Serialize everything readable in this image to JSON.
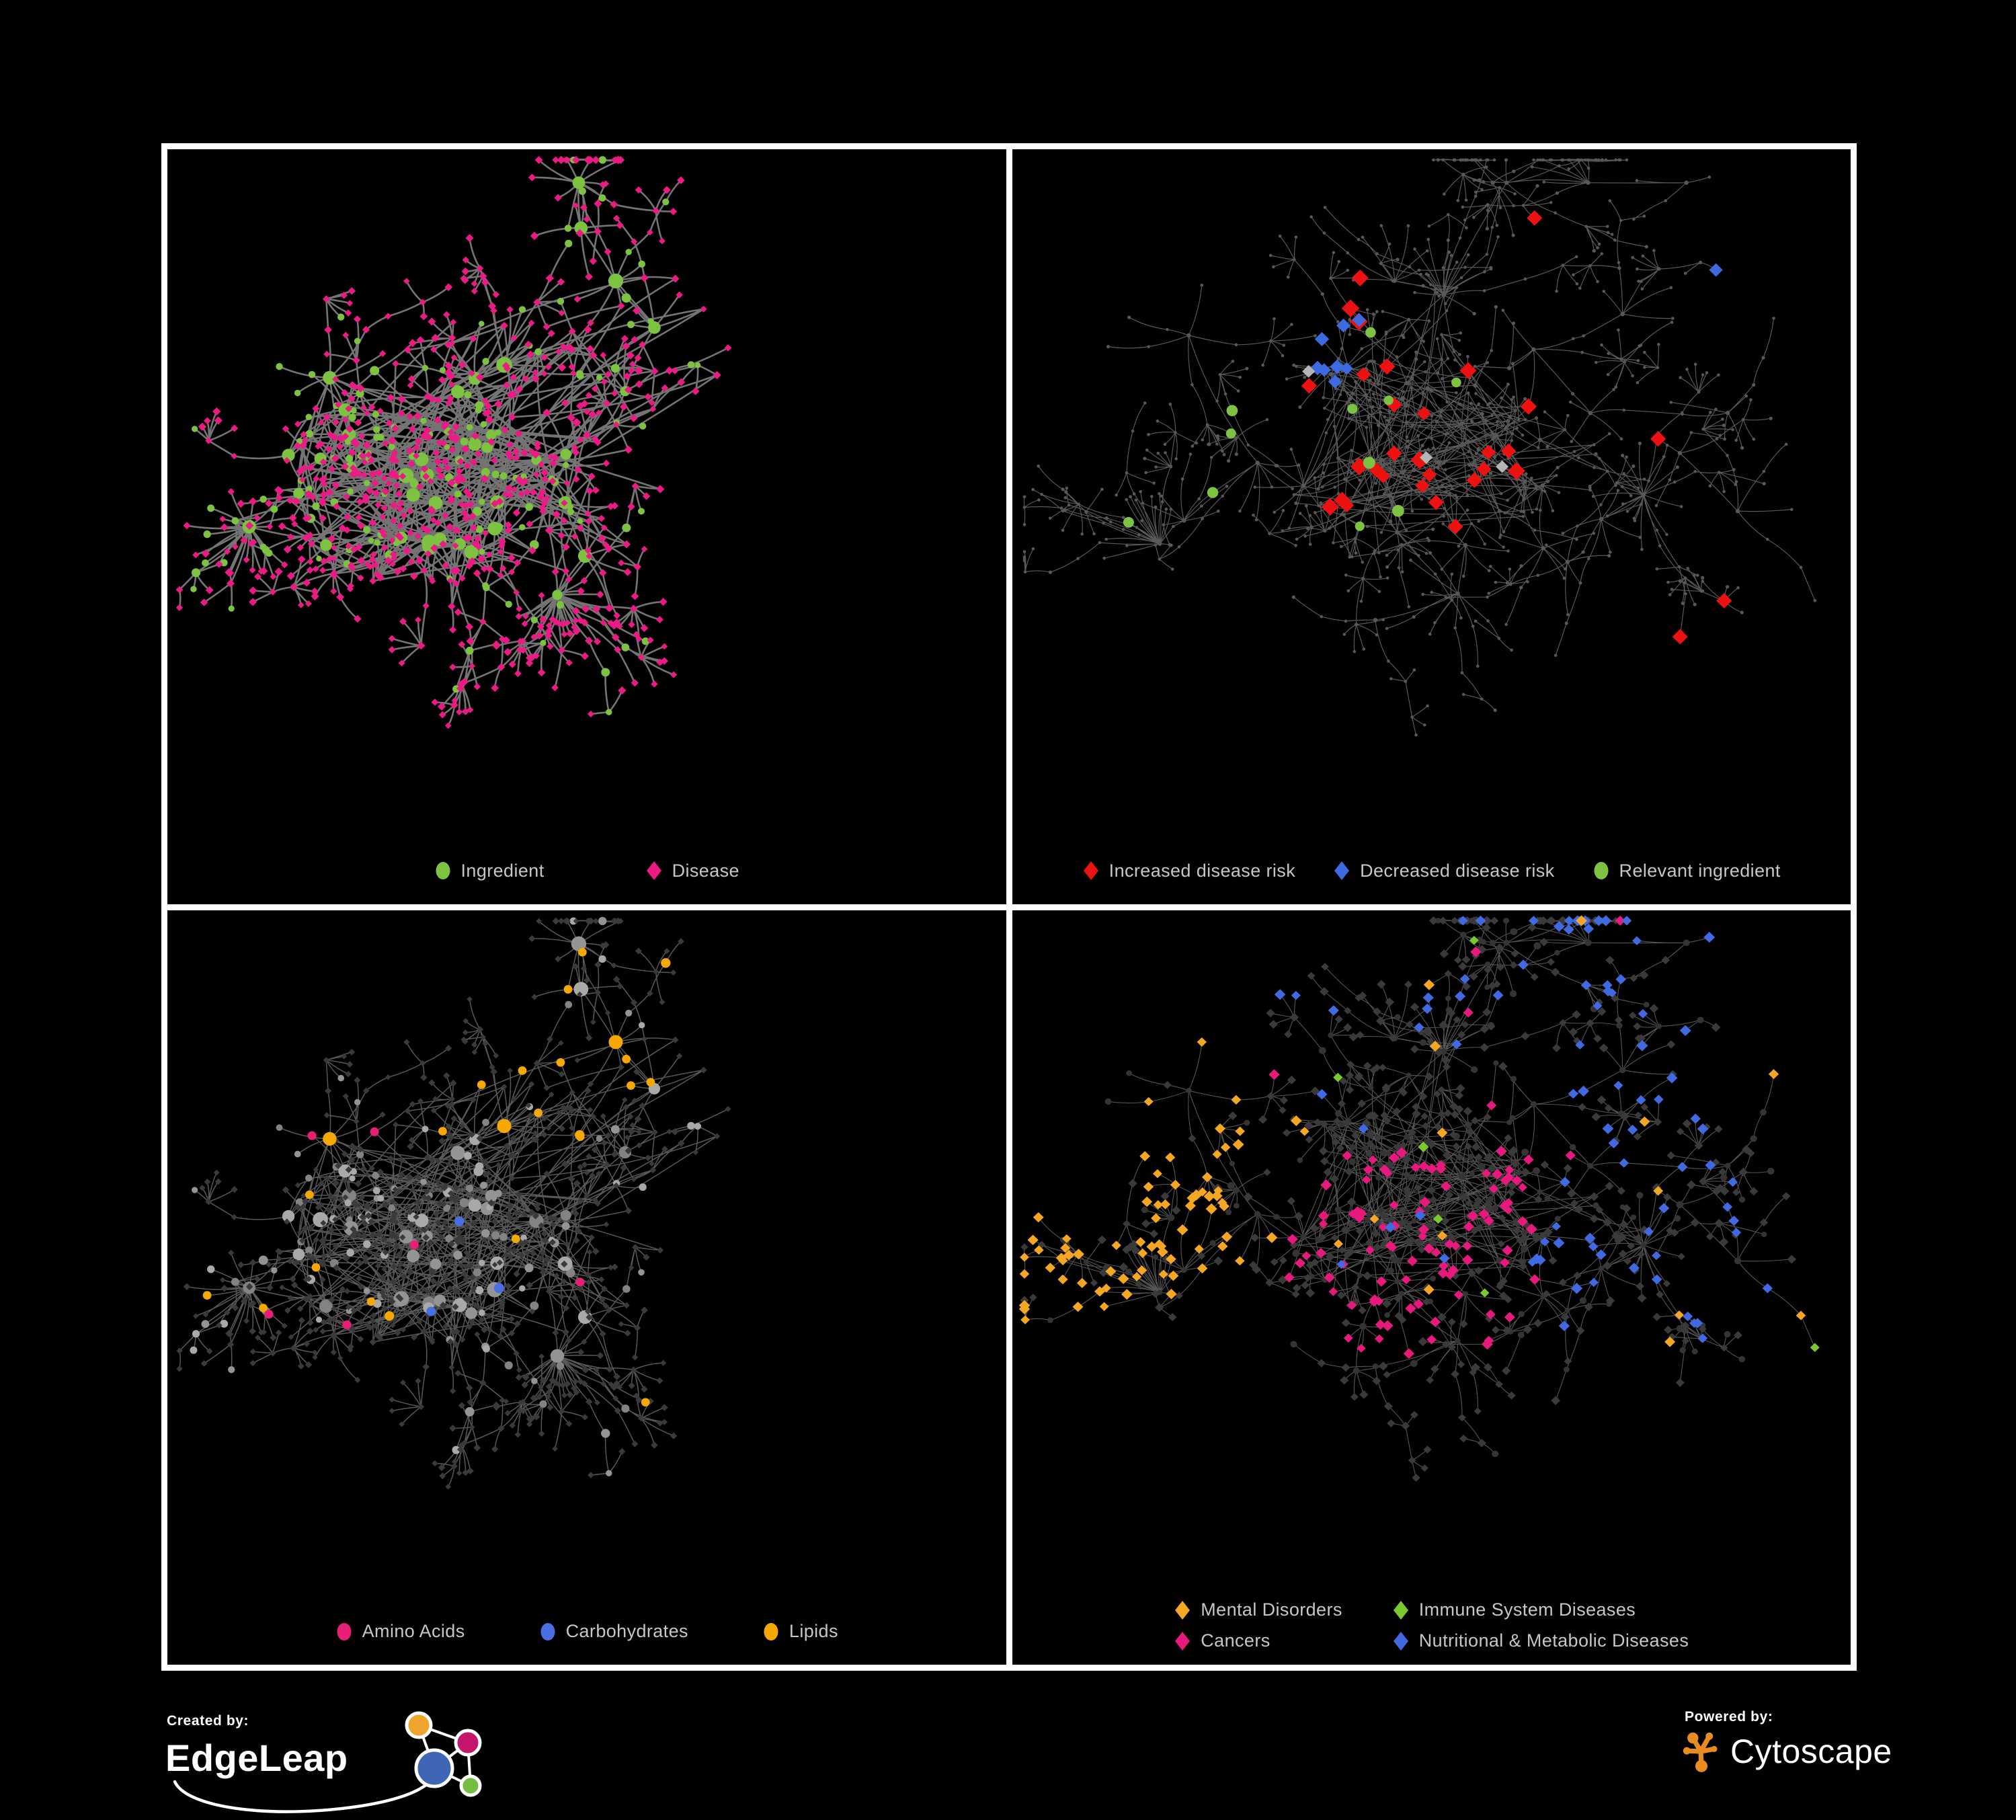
{
  "figure": {
    "background": "#000000",
    "panel_background": "#000000",
    "panel_border_color": "#ffffff",
    "legend_text_color": "#c6c6c6"
  },
  "panels": [
    {
      "id": "ingredient-disease",
      "position": "top-left",
      "edge_color": "#7a7a7a",
      "legend": [
        {
          "label": "Ingredient",
          "shape": "circle",
          "color": "#7dc241"
        },
        {
          "label": "Disease",
          "shape": "diamond",
          "color": "#eb1a85"
        }
      ]
    },
    {
      "id": "disease-risk",
      "position": "top-right",
      "edge_color": "#6a6a6a",
      "base_node_color": "#585858",
      "muted_diamond_color": "#b5b5b5",
      "legend": [
        {
          "label": "Increased disease risk",
          "shape": "diamond",
          "color": "#ee1111"
        },
        {
          "label": "Decreased disease risk",
          "shape": "diamond",
          "color": "#3d6ae0"
        },
        {
          "label": "Relevant ingredient",
          "shape": "circle",
          "color": "#7dc241"
        }
      ]
    },
    {
      "id": "ingredient-classes",
      "position": "bottom-left",
      "edge_color": "#6e6e6e",
      "default_node_color": "#9b9b9b",
      "disease_node_color": "#3a3a3a",
      "legend": [
        {
          "label": "Amino Acids",
          "shape": "circle",
          "color": "#e91e77"
        },
        {
          "label": "Carbohydrates",
          "shape": "circle",
          "color": "#4a6fe3"
        },
        {
          "label": "Lipids",
          "shape": "circle",
          "color": "#f7a800"
        }
      ]
    },
    {
      "id": "disease-categories",
      "position": "bottom-right",
      "edge_color": "#6a6a6a",
      "default_node_color": "#3a3a3a",
      "ingredient_node_color": "#343434",
      "legend": [
        {
          "label": "Mental Disorders",
          "shape": "diamond",
          "color": "#f5a623"
        },
        {
          "label": "Immune System Diseases",
          "shape": "diamond",
          "color": "#7ac92f"
        },
        {
          "label": "Cancers",
          "shape": "diamond",
          "color": "#e8197d"
        },
        {
          "label": "Nutritional & Metabolic Diseases",
          "shape": "diamond",
          "color": "#4169e1"
        }
      ]
    }
  ],
  "branding": {
    "created_by_label": "Created by:",
    "edgeleap_name": "EdgeLeap",
    "edgeleap_logo_colors": {
      "orange": "#efa42b",
      "magenta": "#c4176c",
      "blue": "#3e66b5",
      "green": "#76bc40"
    },
    "powered_by_label": "Powered by:",
    "cytoscape_name": "Cytoscape",
    "cytoscape_logo_color": "#e98c1f"
  }
}
